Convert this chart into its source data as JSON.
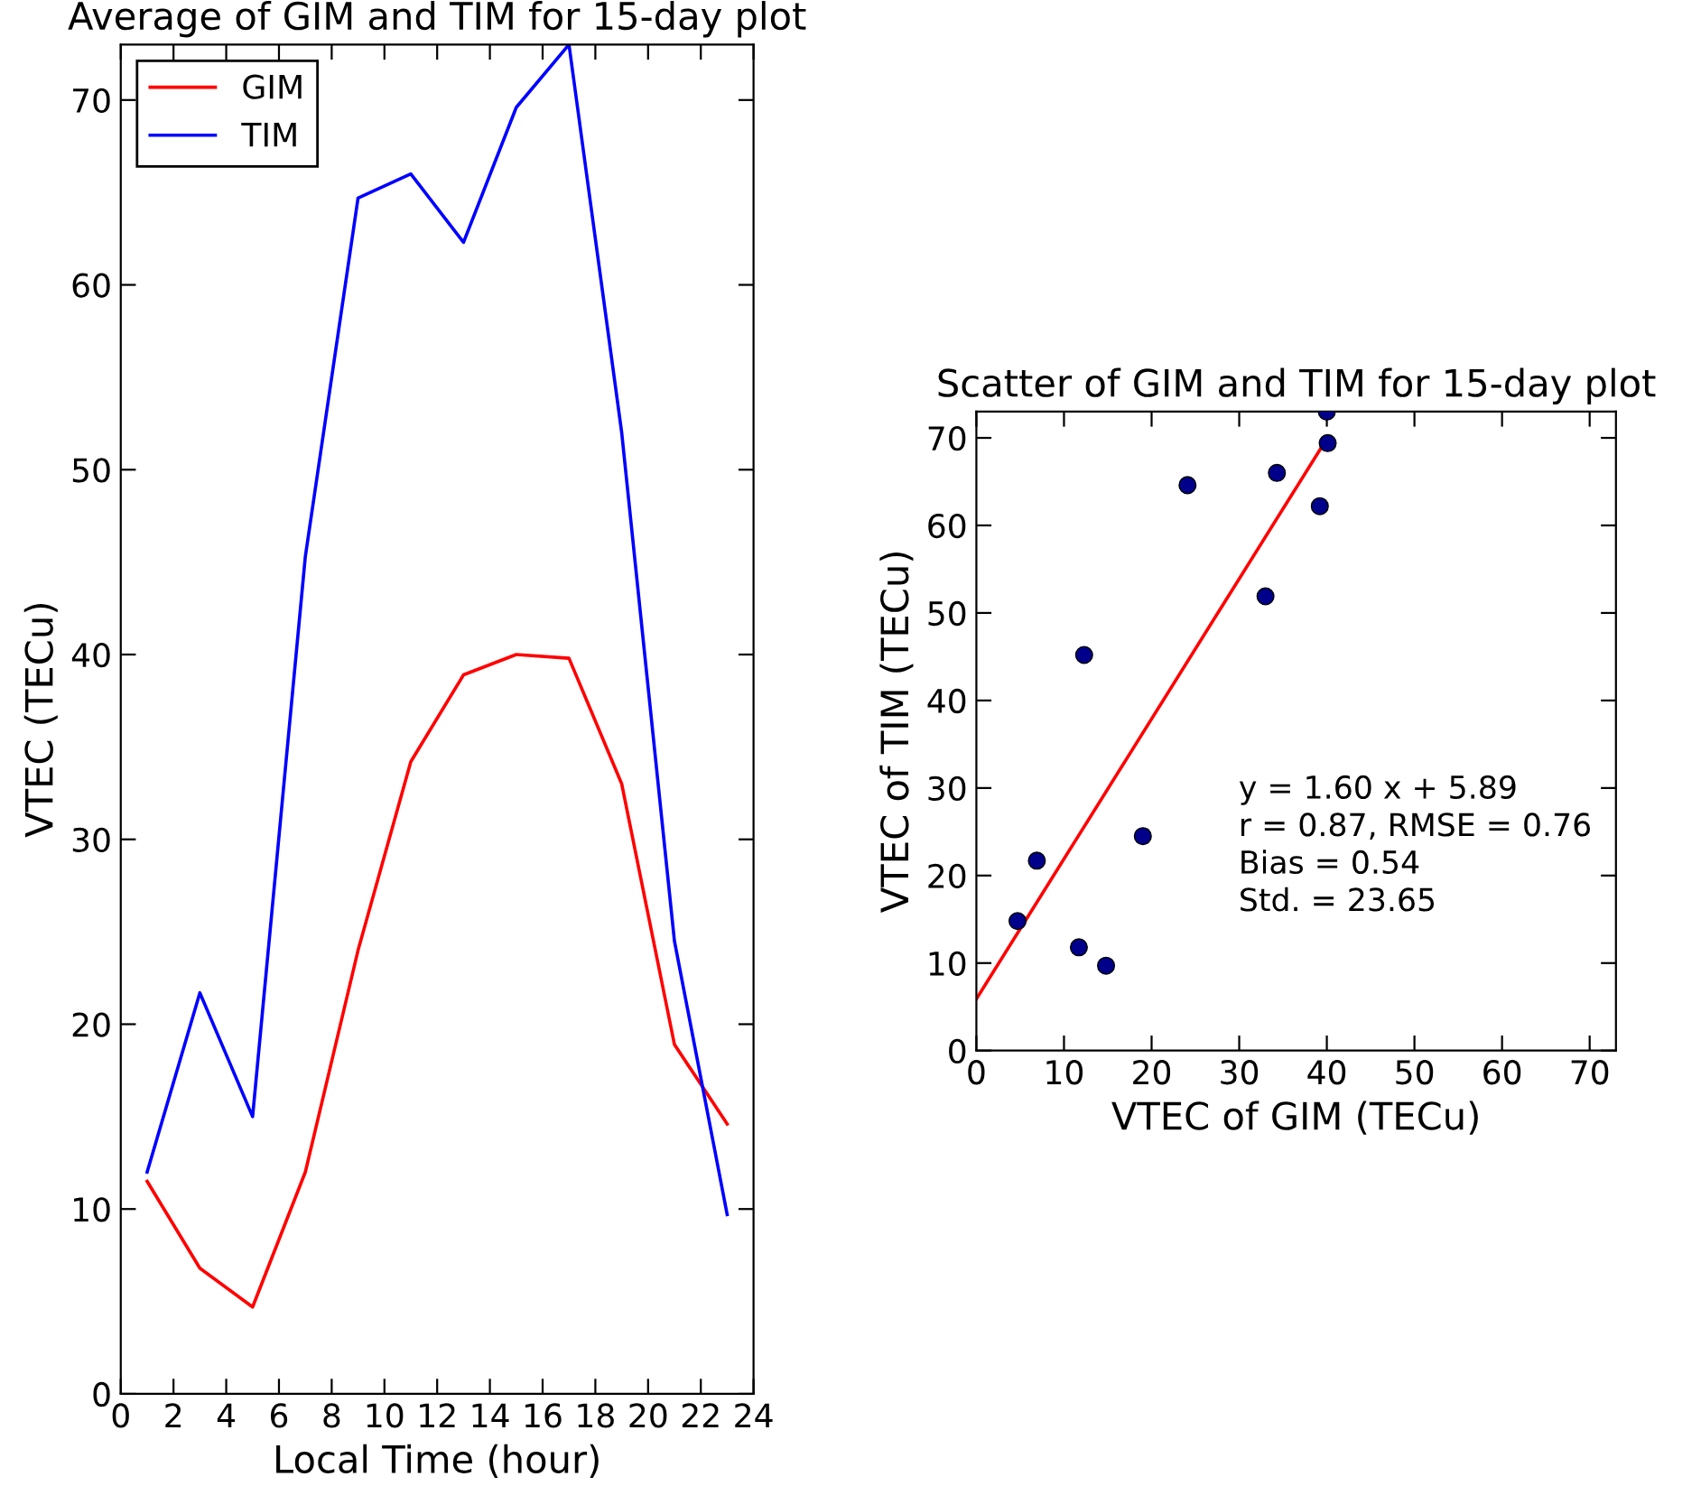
{
  "chart_data": [
    {
      "type": "line",
      "title": "Average of GIM and TIM for 15-day plot",
      "xlabel": "Local Time (hour)",
      "ylabel": "VTEC (TECu)",
      "x": [
        1,
        3,
        5,
        7,
        9,
        11,
        13,
        15,
        17,
        19,
        21,
        23
      ],
      "series": [
        {
          "name": "GIM",
          "color": "#ff0000",
          "values": [
            11.5,
            6.8,
            4.7,
            12,
            24,
            34.2,
            38.9,
            40,
            39.8,
            33,
            18.9,
            14.6
          ]
        },
        {
          "name": "TIM",
          "color": "#0000ff",
          "values": [
            12,
            21.7,
            15,
            45.3,
            64.7,
            66,
            62.3,
            69.6,
            73,
            52,
            24.5,
            9.7
          ]
        }
      ],
      "xlim": [
        0,
        24
      ],
      "xticks": [
        0,
        2,
        4,
        6,
        8,
        10,
        12,
        14,
        16,
        18,
        20,
        22,
        24
      ],
      "ylim": [
        0,
        73
      ],
      "yticks": [
        0,
        10,
        20,
        30,
        40,
        50,
        60,
        70
      ],
      "legend": "top left",
      "grid": false
    },
    {
      "type": "scatter",
      "title": "Scatter of GIM and TIM for 15-day plot",
      "xlabel": "VTEC of GIM (TECu)",
      "ylabel": "VTEC of TIM (TECu)",
      "series": [
        {
          "type": "scatter",
          "marker": "circle",
          "color": "#00008b",
          "x": [
            4.7,
            6.9,
            11.7,
            12.3,
            14.8,
            19,
            24.1,
            33,
            34.3,
            39.2,
            40,
            40.1
          ],
          "values": [
            14.8,
            21.7,
            11.8,
            45.2,
            9.7,
            24.5,
            64.6,
            51.9,
            66,
            62.2,
            73,
            69.4
          ]
        },
        {
          "type": "line",
          "color": "#ff0000",
          "x": [
            0,
            40
          ],
          "values": [
            5.9,
            69.9
          ]
        }
      ],
      "xlim": [
        0,
        73
      ],
      "xticks": [
        0,
        10,
        20,
        30,
        40,
        50,
        60,
        70
      ],
      "ylim": [
        0,
        73
      ],
      "yticks": [
        0,
        10,
        20,
        30,
        40,
        50,
        60,
        70
      ],
      "annotations": [
        "y = 1.60 x + 5.89",
        "r = 0.87, RMSE = 0.76",
        "Bias = 0.54",
        "Std. = 23.65"
      ],
      "grid": false
    }
  ]
}
